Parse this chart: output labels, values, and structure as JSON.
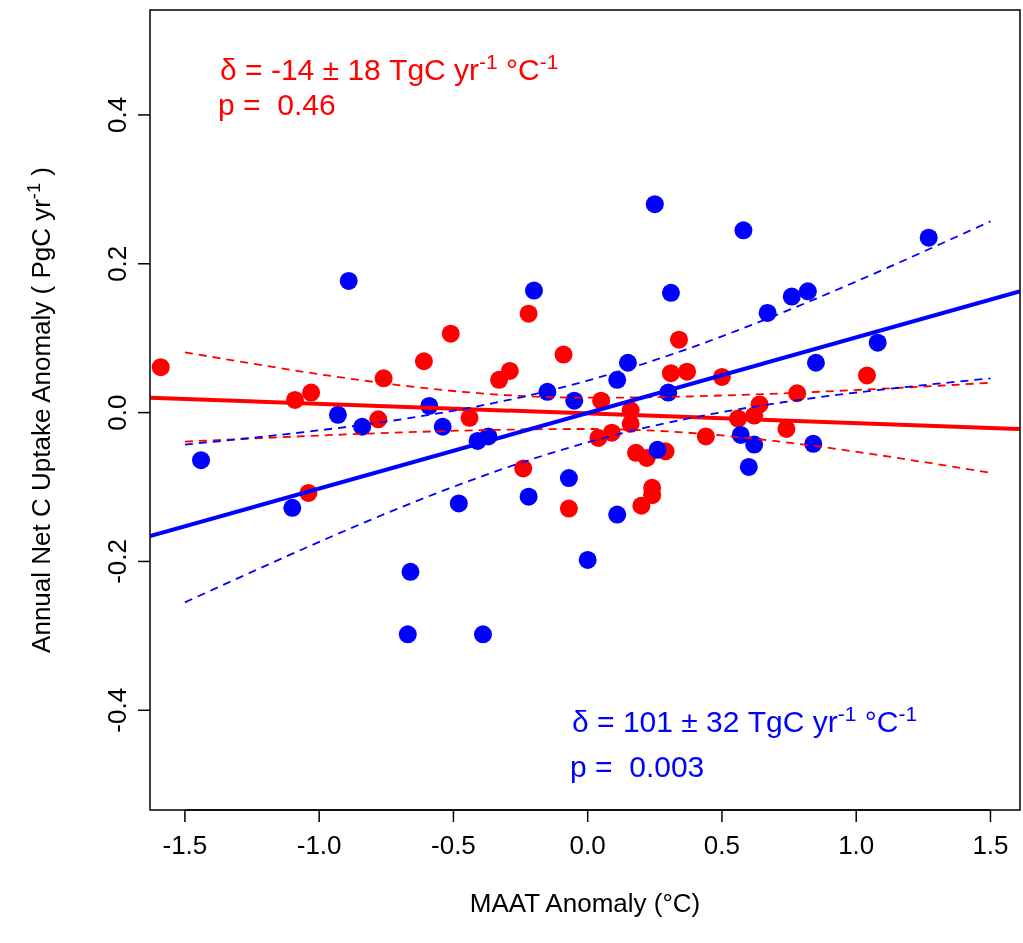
{
  "chart_data": {
    "type": "scatter",
    "xlabel": "MAAT Anomaly (°C)",
    "ylabel": "Annual Net C Uptake Anomaly ( PgC yr$^{-1}$ )",
    "xlim": [
      -1.63,
      1.61
    ],
    "ylim": [
      -0.534,
      0.541
    ],
    "xticks": [
      -1.5,
      {
        "value": -1,
        "label": "-1.0"
      },
      -0.5,
      {
        "value": 0,
        "label": "0.0"
      },
      0.5,
      {
        "value": 1,
        "label": "1.0"
      },
      1.5
    ],
    "yticks": [
      -0.4,
      -0.2,
      {
        "value": 0,
        "label": "0.0"
      },
      0.2,
      0.4
    ],
    "grid": false,
    "annotations": [
      "δ = -14 ± 18 TgC yr$^{-1}$ °C$^{-1}$",
      "p =  0.46",
      "δ = 101 ± 32 TgC yr$^{-1}$ °C$^{-1}$",
      "p =  0.003"
    ],
    "series": [
      {
        "marker": "circle",
        "color": "#ff0000",
        "x": [
          -1.59,
          -1.09,
          -1.03,
          -0.76,
          -0.78,
          -0.61,
          -0.51,
          -0.44,
          -0.33,
          -0.29,
          -0.22,
          -0.09,
          -0.24,
          -0.07,
          -1.04,
          0.05,
          0.04,
          0.09,
          0.16,
          0.16,
          0.18,
          0.22,
          0.29,
          0.24,
          0.24,
          0.2,
          0.34,
          0.31,
          0.37,
          0.5,
          0.44,
          0.56,
          0.64,
          0.62,
          0.74,
          0.78,
          1.04
        ],
        "values": [
          0.061,
          0.017,
          0.027,
          0.046,
          -0.009,
          0.069,
          0.106,
          -0.007,
          0.044,
          0.056,
          0.133,
          0.078,
          -0.075,
          -0.129,
          -0.108,
          0.016,
          -0.034,
          -0.027,
          0.003,
          -0.015,
          -0.054,
          -0.061,
          -0.052,
          -0.101,
          -0.111,
          -0.125,
          0.098,
          0.053,
          0.055,
          0.048,
          -0.032,
          -0.008,
          0.011,
          -0.004,
          -0.022,
          0.026,
          0.05
        ]
      },
      {
        "marker": "circle",
        "color": "#0000ff",
        "x": [
          -1.44,
          -1.1,
          -0.93,
          -0.89,
          -0.84,
          -0.67,
          -0.66,
          -0.59,
          -0.54,
          -0.48,
          -0.41,
          -0.39,
          -0.37,
          -0.22,
          -0.2,
          -0.15,
          -0.07,
          -0.05,
          0,
          0.11,
          0.11,
          0.15,
          0.25,
          0.26,
          0.3,
          0.31,
          0.57,
          0.58,
          0.6,
          0.62,
          0.67,
          0.76,
          0.82,
          0.84,
          0.85,
          1.08,
          1.27
        ],
        "values": [
          -0.064,
          -0.128,
          -0.003,
          0.177,
          -0.019,
          -0.298,
          -0.214,
          0.009,
          -0.019,
          -0.122,
          -0.038,
          -0.298,
          -0.032,
          -0.113,
          0.164,
          0.028,
          -0.088,
          0.016,
          -0.198,
          0.044,
          -0.137,
          0.067,
          0.28,
          -0.05,
          0.027,
          0.161,
          -0.03,
          0.245,
          -0.073,
          -0.043,
          0.134,
          0.156,
          0.163,
          -0.042,
          0.067,
          0.094,
          0.235
        ]
      },
      {
        "type": "line",
        "marker": "none",
        "color": "#ff0000",
        "line_style": "solid",
        "x": [
          -1.63,
          1.61
        ],
        "values": [
          0.02,
          -0.022
        ]
      },
      {
        "type": "line",
        "marker": "none",
        "color": "#ff0000",
        "line_style": "dashed",
        "x": [
          -1.5,
          0,
          1.5
        ],
        "values": [
          0.081,
          0.02,
          0.04
        ]
      },
      {
        "type": "line",
        "marker": "none",
        "color": "#ff0000",
        "line_style": "dashed",
        "x": [
          -1.5,
          0,
          1.5
        ],
        "values": [
          -0.039,
          -0.022,
          -0.081
        ]
      },
      {
        "type": "line",
        "marker": "none",
        "color": "#0000ff",
        "line_style": "solid",
        "x": [
          -1.63,
          1.61
        ],
        "values": [
          -0.166,
          0.163
        ]
      },
      {
        "type": "line",
        "marker": "none",
        "color": "#0000ff",
        "line_style": "dashed",
        "x": [
          -1.5,
          0,
          1.5
        ],
        "values": [
          -0.043,
          0.043,
          0.257
        ]
      },
      {
        "type": "line",
        "marker": "none",
        "color": "#0000ff",
        "line_style": "dashed",
        "x": [
          -1.5,
          0,
          1.5
        ],
        "values": [
          -0.255,
          -0.04,
          0.046
        ]
      }
    ]
  }
}
